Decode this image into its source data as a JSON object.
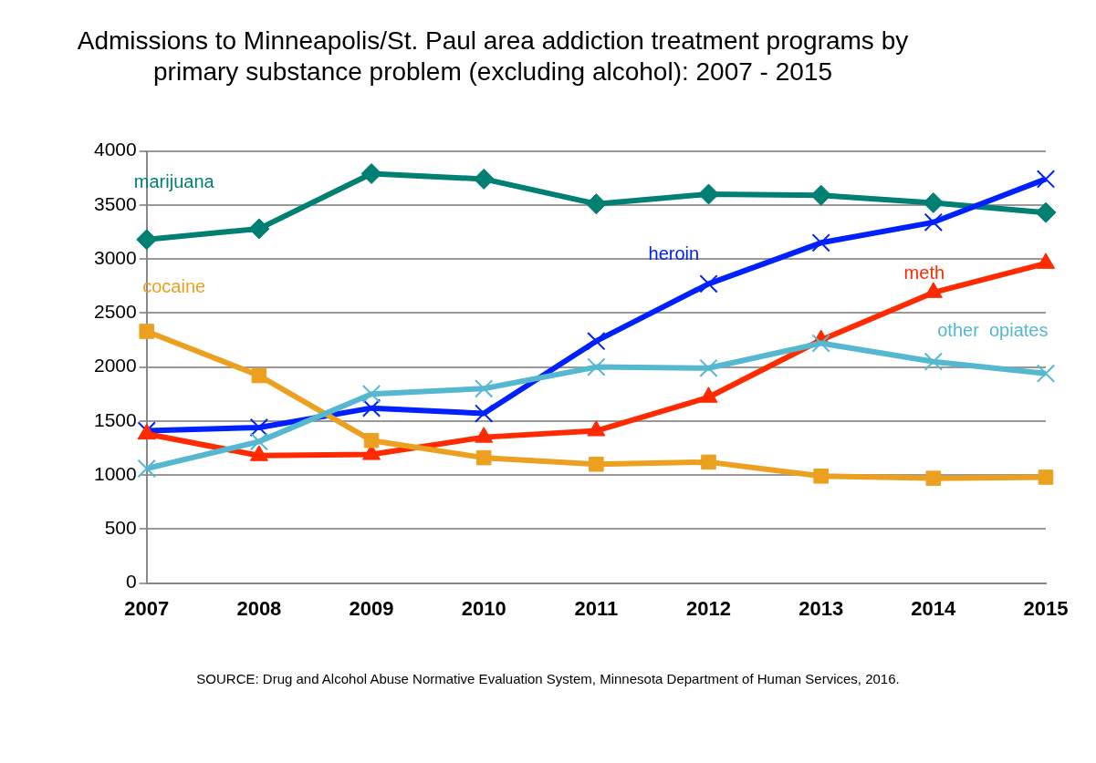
{
  "chart_data": {
    "type": "line",
    "title": "Admissions to Minneapolis/St. Paul area addiction treatment programs by primary substance problem (excluding alcohol): 2007 - 2015",
    "categories": [
      "2007",
      "2008",
      "2009",
      "2010",
      "2011",
      "2012",
      "2013",
      "2014",
      "2015"
    ],
    "series": [
      {
        "name": "marijuana",
        "color": "#007f73",
        "marker": "diamond",
        "values": [
          3180,
          3280,
          3790,
          3740,
          3510,
          3600,
          3590,
          3520,
          3430
        ]
      },
      {
        "name": "heroin",
        "color": "#0021ff",
        "marker": "cross",
        "values": [
          1410,
          1440,
          1620,
          1570,
          2240,
          2770,
          3150,
          3340,
          3740
        ]
      },
      {
        "name": "meth",
        "color": "#ff2a00",
        "marker": "triangle",
        "values": [
          1380,
          1180,
          1190,
          1350,
          1410,
          1720,
          2250,
          2690,
          2960
        ]
      },
      {
        "name": "cocaine",
        "color": "#eba020",
        "marker": "square",
        "values": [
          2330,
          1920,
          1320,
          1160,
          1100,
          1120,
          990,
          970,
          980
        ]
      },
      {
        "name": "other  opiates",
        "color": "#55b8d0",
        "marker": "cross",
        "values": [
          1060,
          1310,
          1750,
          1800,
          2000,
          1990,
          2220,
          2050,
          1940
        ]
      }
    ],
    "ylim": [
      0,
      4000
    ],
    "yticks": [
      0,
      500,
      1000,
      1500,
      2000,
      2500,
      3000,
      3500,
      4000
    ],
    "grid": "y",
    "legend": false,
    "annotations": [
      "SOURCE: Drug and Alcohol Abuse Normative Evaluation System, Minnesota Department of Human Services, 2016."
    ]
  }
}
